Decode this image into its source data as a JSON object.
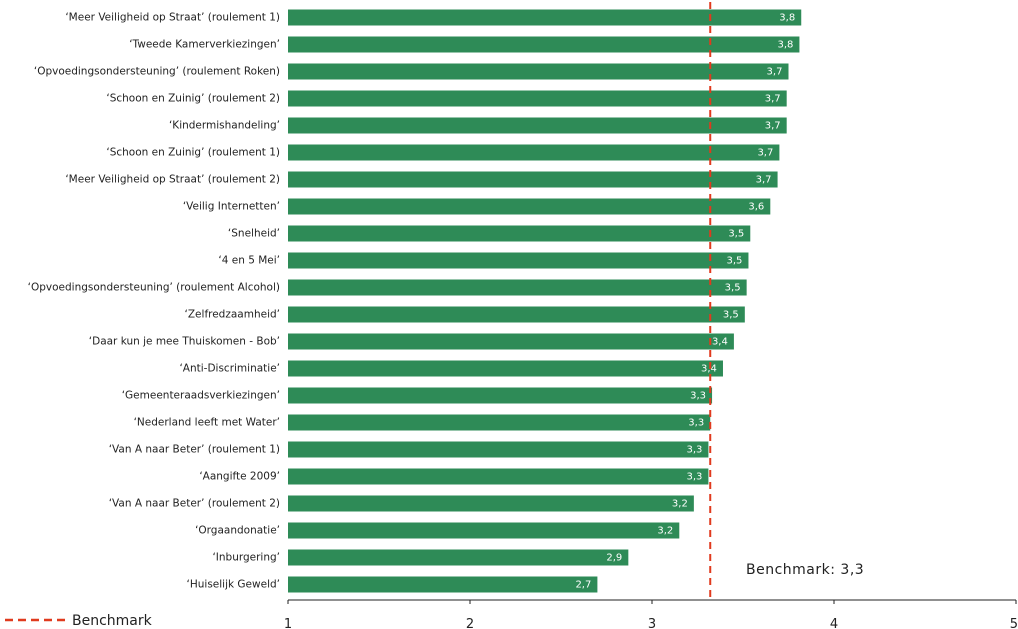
{
  "chart_data": {
    "type": "bar",
    "orientation": "horizontal",
    "categories": [
      "‘Meer Veiligheid op Straat’ (roulement 1)",
      "‘Tweede Kamerverkiezingen’",
      "‘Opvoedingsondersteuning’ (roulement Roken)",
      "‘Schoon en Zuinig’ (roulement 2)",
      "‘Kindermishandeling’",
      "‘Schoon en Zuinig’ (roulement 1)",
      "‘Meer Veiligheid op Straat’ (roulement 2)",
      "‘Veilig Internetten’",
      "‘Snelheid’",
      "‘4 en 5 Mei’",
      "‘Opvoedingsondersteuning’ (roulement Alcohol)",
      "‘Zelfredzaamheid’",
      "‘Daar kun je mee Thuiskomen - Bob’",
      "‘Anti-Discriminatie’",
      "‘Gemeenteraadsverkiezingen’",
      "‘Nederland leeft met Water’",
      "‘Van A naar Beter’ (roulement 1)",
      "‘Aangifte 2009’",
      "‘Van A naar Beter’ (roulement 2)",
      "‘Orgaandonatie’",
      "‘Inburgering’",
      "‘Huiselijk Geweld’"
    ],
    "values": [
      3.82,
      3.81,
      3.75,
      3.74,
      3.74,
      3.7,
      3.69,
      3.65,
      3.54,
      3.53,
      3.52,
      3.51,
      3.45,
      3.39,
      3.33,
      3.32,
      3.31,
      3.31,
      3.23,
      3.15,
      2.87,
      2.7
    ],
    "value_labels": [
      "3,8",
      "3,8",
      "3,7",
      "3,7",
      "3,7",
      "3,7",
      "3,7",
      "3,6",
      "3,5",
      "3,5",
      "3,5",
      "3,5",
      "3,4",
      "3,4",
      "3,3",
      "3,3",
      "3,3",
      "3,3",
      "3,2",
      "3,2",
      "2,9",
      "2,7"
    ],
    "xlim": [
      1,
      5
    ],
    "x_ticks": [
      1,
      2,
      3,
      4,
      5
    ],
    "x_tick_labels": [
      "1",
      "2",
      "3",
      "4",
      "5"
    ],
    "xlabel": "",
    "ylabel": "",
    "title": "",
    "grid": false,
    "bar_color": "#2e8b57",
    "benchmark": {
      "value": 3.32,
      "label": "Benchmark: 3,3",
      "color": "#e03a1e",
      "style": "dashed"
    },
    "legend": {
      "placement": "bottom-left",
      "entries": [
        {
          "label": "Benchmark",
          "color": "#e03a1e",
          "style": "dashed"
        }
      ]
    }
  }
}
